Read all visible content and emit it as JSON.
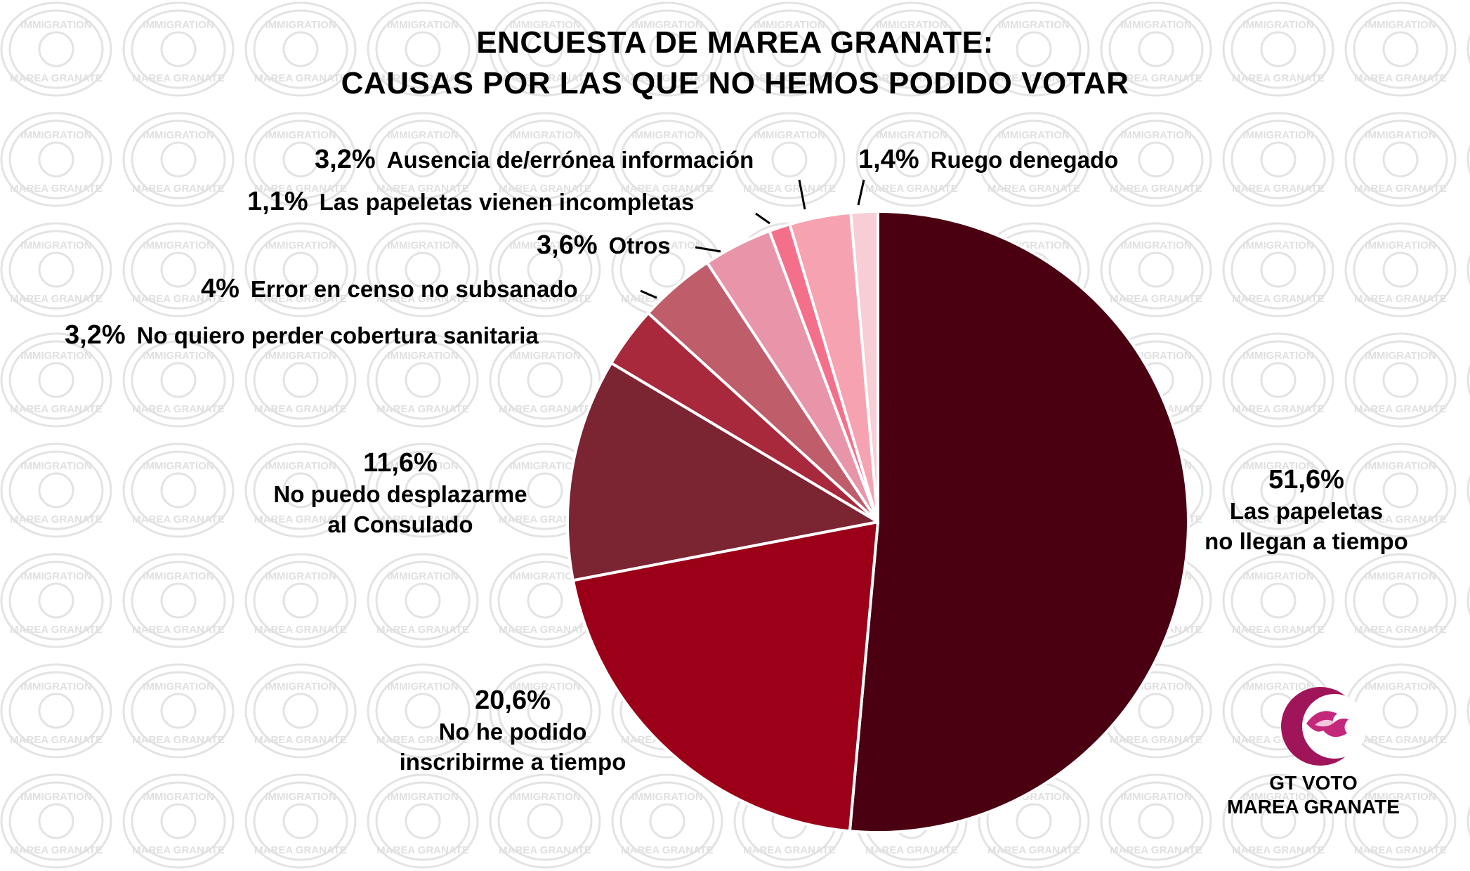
{
  "title_lines": [
    "ENCUESTA DE MAREA GRANATE:",
    "CAUSAS POR LAS QUE NO HEMOS PODIDO VOTAR"
  ],
  "watermark": {
    "line1": "IMMIGRATION",
    "line2": "MAREA GRANATE"
  },
  "logo": {
    "line1": "GT VOTO",
    "line2": "MAREA GRANATE",
    "color": "#a0145a"
  },
  "chart_data": {
    "type": "pie",
    "title": "ENCUESTA DE MAREA GRANATE: CAUSAS POR LAS QUE NO HEMOS PODIDO VOTAR",
    "start_angle_deg": 0,
    "direction": "clockwise",
    "slices": [
      {
        "label_lines": [
          "Las papeletas",
          "no llegan a tiempo"
        ],
        "pct_text": "51,6%",
        "value": 51.6,
        "color": "#4a0010"
      },
      {
        "label_lines": [
          "No he podido",
          "inscribirme a tiempo"
        ],
        "pct_text": "20,6%",
        "value": 20.6,
        "color": "#9b0018"
      },
      {
        "label_lines": [
          "No puedo desplazarme",
          "al Consulado"
        ],
        "pct_text": "11,6%",
        "value": 11.6,
        "color": "#7b2432"
      },
      {
        "label_lines": [
          "No quiero perder cobertura sanitaria"
        ],
        "pct_text": "3,2%",
        "value": 3.2,
        "color": "#a8283c"
      },
      {
        "label_lines": [
          "Error en censo no subsanado"
        ],
        "pct_text": "4%",
        "value": 4.0,
        "color": "#bf5d6b"
      },
      {
        "label_lines": [
          "Otros"
        ],
        "pct_text": "3,6%",
        "value": 3.6,
        "color": "#e895a9"
      },
      {
        "label_lines": [
          "Las papeletas vienen incompletas"
        ],
        "pct_text": "1,1%",
        "value": 1.1,
        "color": "#f4708a"
      },
      {
        "label_lines": [
          "Ausencia de/errónea información"
        ],
        "pct_text": "3,2%",
        "value": 3.2,
        "color": "#f7a2b1"
      },
      {
        "label_lines": [
          "Ruego denegado"
        ],
        "pct_text": "1,4%",
        "value": 1.4,
        "color": "#f7cdd6"
      }
    ]
  }
}
